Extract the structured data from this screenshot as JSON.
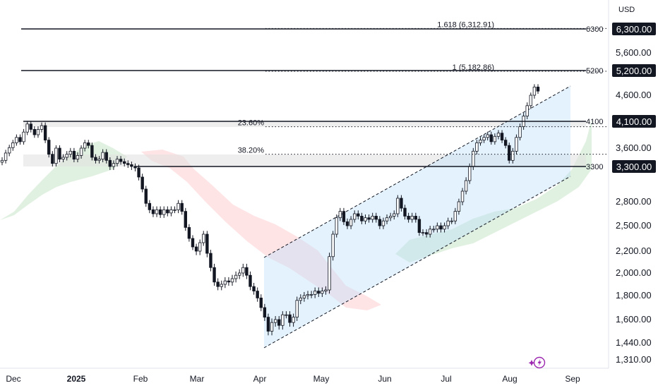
{
  "chart_data": {
    "type": "candlestick",
    "currency": "USD",
    "y_ticks": [
      "6,300.00",
      "5,600.00",
      "5,200.00",
      "4,600.00",
      "4,100.00",
      "3,600.00",
      "3,300.00",
      "2,800.00",
      "2,500.00",
      "2,200.00",
      "2,000.00",
      "1,800.00",
      "1,600.00",
      "1,440.00",
      "1,310.00"
    ],
    "x_ticks": [
      {
        "label": "Dec",
        "bold": false
      },
      {
        "label": "2025",
        "bold": true
      },
      {
        "label": "Feb",
        "bold": false
      },
      {
        "label": "Mar",
        "bold": false
      },
      {
        "label": "Apr",
        "bold": false
      },
      {
        "label": "May",
        "bold": false
      },
      {
        "label": "Jun",
        "bold": false
      },
      {
        "label": "Jul",
        "bold": false
      },
      {
        "label": "Aug",
        "bold": false
      },
      {
        "label": "Sep",
        "bold": false
      }
    ],
    "horizontal_levels": [
      {
        "label": "6300",
        "badge": "6,300.00",
        "value": 6300
      },
      {
        "label": "5200",
        "badge": "5,200.00",
        "value": 5200
      },
      {
        "label": "4100",
        "badge": "4,100.00",
        "value": 4100
      },
      {
        "label": "3300",
        "badge": "3,300.00",
        "value": 3300
      }
    ],
    "fib_levels": [
      {
        "label": "1.618 (6,312.91)",
        "value": 6312.91
      },
      {
        "label": "1 (5,182.86)",
        "value": 5182.86
      },
      {
        "label": "23.60%",
        "value": 4000
      },
      {
        "label": "38.20%",
        "value": 3500
      }
    ],
    "closes": [
      3400,
      3520,
      3610,
      3700,
      3800,
      3720,
      3900,
      4050,
      3950,
      3850,
      3950,
      4020,
      3750,
      3500,
      3350,
      3600,
      3420,
      3450,
      3500,
      3550,
      3420,
      3480,
      3600,
      3700,
      3650,
      3450,
      3400,
      3420,
      3530,
      3400,
      3300,
      3350,
      3420,
      3380,
      3350,
      3330,
      3300,
      3280,
      3150,
      2980,
      2780,
      2700,
      2650,
      2700,
      2640,
      2700,
      2660,
      2700,
      2700,
      2780,
      2680,
      2480,
      2350,
      2250,
      2200,
      2300,
      2400,
      2180,
      2050,
      1920,
      1880,
      1900,
      1930,
      1920,
      1950,
      1980,
      2000,
      2050,
      1980,
      1880,
      1840,
      1780,
      1700,
      1620,
      1520,
      1580,
      1600,
      1560,
      1640,
      1640,
      1580,
      1620,
      1760,
      1780,
      1800,
      1810,
      1810,
      1840,
      1820,
      1840,
      1850,
      2150,
      2400,
      2600,
      2680,
      2550,
      2500,
      2580,
      2650,
      2620,
      2560,
      2600,
      2580,
      2620,
      2580,
      2500,
      2560,
      2600,
      2620,
      2650,
      2850,
      2720,
      2620,
      2580,
      2620,
      2580,
      2420,
      2420,
      2400,
      2460,
      2460,
      2500,
      2460,
      2500,
      2560,
      2560,
      2680,
      2800,
      2950,
      3100,
      3300,
      3550,
      3700,
      3750,
      3800,
      3850,
      3720,
      3820,
      3880,
      3750,
      3650,
      3400,
      3550,
      3800,
      4000,
      4200,
      4400,
      4600,
      4800,
      4700
    ]
  },
  "badge_font_note": ""
}
